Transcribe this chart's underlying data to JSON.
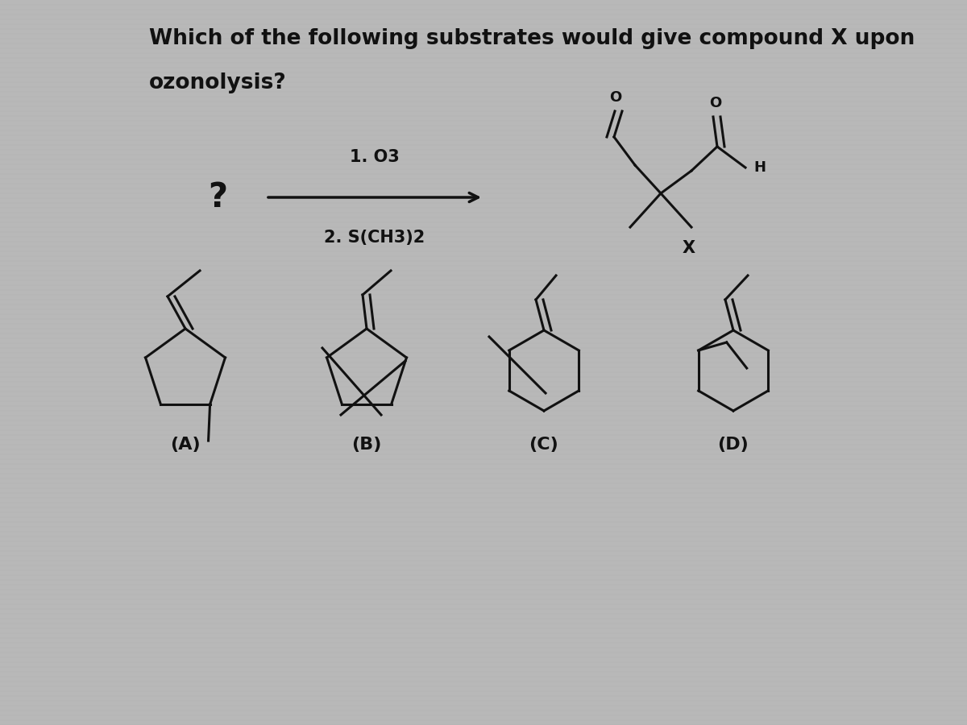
{
  "title_line1": "Which of the following substrates would give compound X upon",
  "title_line2": "ozonolysis?",
  "reagent_line1": "1. O3",
  "reagent_line2": "2. S(CH3)2",
  "product_label": "X",
  "choice_labels": [
    "(A)",
    "(B)",
    "(C)",
    "(D)"
  ],
  "bg_color": "#b8b8b8",
  "text_color": "#111111",
  "line_color": "#111111",
  "title_fontsize": 19,
  "label_fontsize": 16,
  "reagent_fontsize": 15,
  "figw": 12.0,
  "figh": 9.0
}
